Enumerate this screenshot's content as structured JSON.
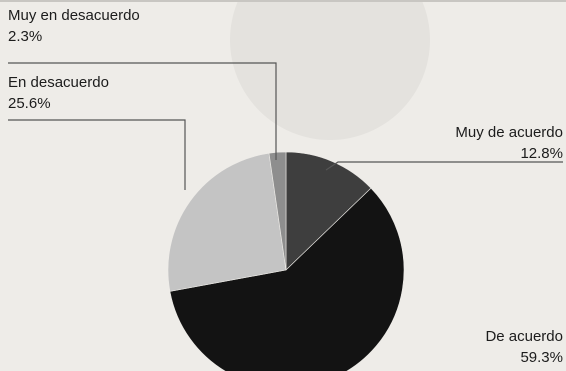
{
  "chart_data": {
    "type": "pie",
    "title": "",
    "slices": [
      {
        "label": "Muy de acuerdo",
        "value": 12.8,
        "value_text": "12.8%",
        "color": "#3e3e3e"
      },
      {
        "label": "De acuerdo",
        "value": 59.3,
        "value_text": "59.3%",
        "color": "#131313"
      },
      {
        "label": "En desacuerdo",
        "value": 25.6,
        "value_text": "25.6%",
        "color": "#c4c4c4"
      },
      {
        "label": "Muy en desacuerdo",
        "value": 2.3,
        "value_text": "2.3%",
        "color": "#8e8e8e"
      }
    ],
    "start_angle": "12 o'clock, clockwise",
    "legend": "none (leader-line labels)"
  }
}
